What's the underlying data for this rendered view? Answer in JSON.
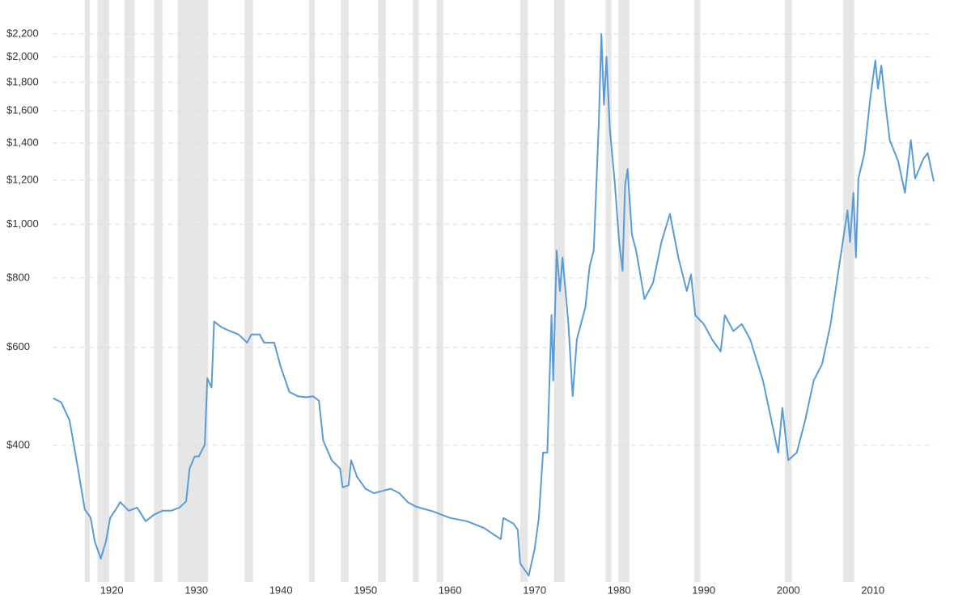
{
  "chart_data": {
    "type": "line",
    "x": [
      1913.1,
      1914,
      1915,
      1916,
      1916.8,
      1917.5,
      1918,
      1918.7,
      1919.3,
      1919.8,
      1920.5,
      1921,
      1922,
      1923,
      1924,
      1925,
      1926,
      1927,
      1928,
      1928.8,
      1929.2,
      1929.8,
      1930.3,
      1931,
      1931.3,
      1931.8,
      1932.1,
      1933,
      1934,
      1935,
      1936,
      1936.5,
      1937.5,
      1938,
      1939.2,
      1940,
      1941,
      1942,
      1943,
      1943.8,
      1944.5,
      1945,
      1946,
      1947,
      1947.3,
      1948,
      1948.3,
      1949,
      1950,
      1951,
      1952,
      1953,
      1954,
      1955,
      1956,
      1958,
      1960,
      1962,
      1964,
      1966,
      1966.3,
      1967.5,
      1968,
      1968.3,
      1969.3,
      1970,
      1970.5,
      1971,
      1971.5,
      1972,
      1972.2,
      1972.6,
      1973,
      1973.3,
      1974,
      1974.5,
      1975,
      1976,
      1976.5,
      1977,
      1977.6,
      1977.9,
      1978.2,
      1978.5,
      1978.9,
      1979.5,
      1980,
      1980.4,
      1980.7,
      1981,
      1981.5,
      1982,
      1983,
      1984,
      1985,
      1986,
      1987,
      1988,
      1988.5,
      1989,
      1990,
      1991,
      1992,
      1992.5,
      1993.5,
      1994.5,
      1995.5,
      1997,
      1998,
      1998.8,
      1999.3,
      2000,
      2001,
      2002,
      2003,
      2004,
      2005,
      2006,
      2007,
      2007.3,
      2007.7,
      2008,
      2008.3,
      2009,
      2009.7,
      2010.3,
      2010.6,
      2011,
      2011.5,
      2012,
      2013,
      2013.8,
      2014.5,
      2015,
      2016,
      2016.5,
      2017.2
    ],
    "series": [
      {
        "color": "#5b9bd5",
        "values": [
          486,
          478,
          444,
          363,
          307,
          296,
          268,
          250,
          268,
          296,
          307,
          316,
          305,
          309,
          292,
          300,
          305,
          305,
          309,
          317,
          363,
          382,
          382,
          401,
          528,
          508,
          668,
          652,
          642,
          633,
          612,
          633,
          633,
          612,
          612,
          552,
          499,
          490,
          488,
          490,
          481,
          408,
          376,
          363,
          336,
          339,
          376,
          351,
          334,
          328,
          331,
          334,
          328,
          316,
          310,
          304,
          296,
          292,
          284,
          271,
          296,
          289,
          282,
          245,
          233,
          260,
          296,
          388,
          388,
          686,
          523,
          897,
          758,
          871,
          661,
          490,
          620,
          709,
          838,
          897,
          1532,
          2200,
          1640,
          2000,
          1483,
          1176,
          928,
          824,
          1176,
          1256,
          958,
          897,
          733,
          784,
          928,
          1044,
          871,
          758,
          812,
          686,
          661,
          620,
          590,
          686,
          642,
          661,
          620,
          523,
          444,
          388,
          467,
          376,
          388,
          444,
          523,
          560,
          661,
          838,
          1059,
          928,
          1139,
          871,
          1208,
          1343,
          1690,
          1971,
          1753,
          1930,
          1640,
          1417,
          1297,
          1139,
          1417,
          1208,
          1313,
          1343,
          1193
        ]
      }
    ],
    "recessions": [
      [
        1916.8,
        1917.4
      ],
      [
        1918.3,
        1919.7
      ],
      [
        1921.5,
        1922.7
      ],
      [
        1925.0,
        1926.0
      ],
      [
        1927.8,
        1931.4
      ],
      [
        1935.7,
        1936.7
      ],
      [
        1943.3,
        1944.0
      ],
      [
        1947.1,
        1948.0
      ],
      [
        1951.5,
        1952.4
      ],
      [
        1955.6,
        1956.3
      ],
      [
        1958.4,
        1959.2
      ],
      [
        1968.3,
        1969.2
      ],
      [
        1972.3,
        1973.6
      ],
      [
        1978.4,
        1979.1
      ],
      [
        1979.9,
        1981.2
      ],
      [
        1988.9,
        1989.6
      ],
      [
        1999.6,
        2000.4
      ],
      [
        2006.5,
        2007.8
      ]
    ],
    "recession_color": "#e6e6e6",
    "xlim": [
      1913,
      2017.3
    ],
    "xticks": [
      1920,
      1930,
      1940,
      1950,
      1960,
      1970,
      1980,
      1990,
      2000,
      2010
    ],
    "ylim": [
      230,
      2400
    ],
    "log_scale": true,
    "yticks": [
      {
        "value": 400,
        "label": "$400"
      },
      {
        "value": 600,
        "label": "$600"
      },
      {
        "value": 800,
        "label": "$800"
      },
      {
        "value": 1000,
        "label": "$1,000"
      },
      {
        "value": 1200,
        "label": "$1,200"
      },
      {
        "value": 1400,
        "label": "$1,400"
      },
      {
        "value": 1600,
        "label": "$1,600"
      },
      {
        "value": 1800,
        "label": "$1,800"
      },
      {
        "value": 2000,
        "label": "$2,000"
      },
      {
        "value": 2200,
        "label": "$2,200"
      }
    ],
    "grid": true
  }
}
